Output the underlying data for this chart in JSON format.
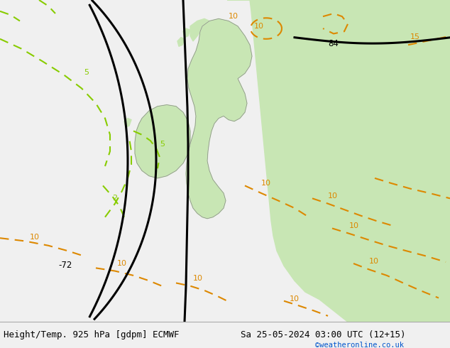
{
  "title_left": "Height/Temp. 925 hPa [gdpm] ECMWF",
  "title_right": "Sa 25-05-2024 03:00 UTC (12+15)",
  "watermark": "©weatheronline.co.uk",
  "watermark_color": "#0055cc",
  "land_color": "#c8e6b4",
  "sea_color": "#d2d2d2",
  "coast_color": "#888888",
  "fig_width": 6.34,
  "fig_height": 4.9,
  "dpi": 100,
  "title_fontsize": 9.0,
  "watermark_fontsize": 7.5,
  "black_lw": 2.2,
  "green_color": "#88cc00",
  "orange_color": "#dd8800",
  "green_lw": 1.5,
  "orange_lw": 1.5
}
